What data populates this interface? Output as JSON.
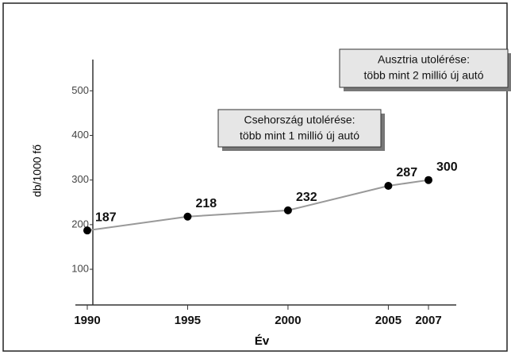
{
  "chart_data": {
    "type": "line",
    "x": [
      1990,
      1995,
      2000,
      2005,
      2007
    ],
    "series": [
      {
        "color": "#000000",
        "values": [
          187,
          218,
          232,
          287,
          300
        ]
      }
    ],
    "xlim": [
      1990,
      2007
    ],
    "xticks": [
      1990,
      1995,
      2000,
      2005,
      2007
    ],
    "ylim": [
      20,
      570
    ],
    "yticks": [
      100,
      200,
      300,
      400,
      500
    ],
    "x_label": "Év",
    "y_label": "db/1000 fő",
    "annotations": [
      {
        "text": [
          "Ausztria utolérése:",
          "több mint 2 millió új autó"
        ]
      },
      {
        "text": [
          "Csehország utolérése:",
          "több mint 1 millió új autó"
        ]
      }
    ]
  }
}
